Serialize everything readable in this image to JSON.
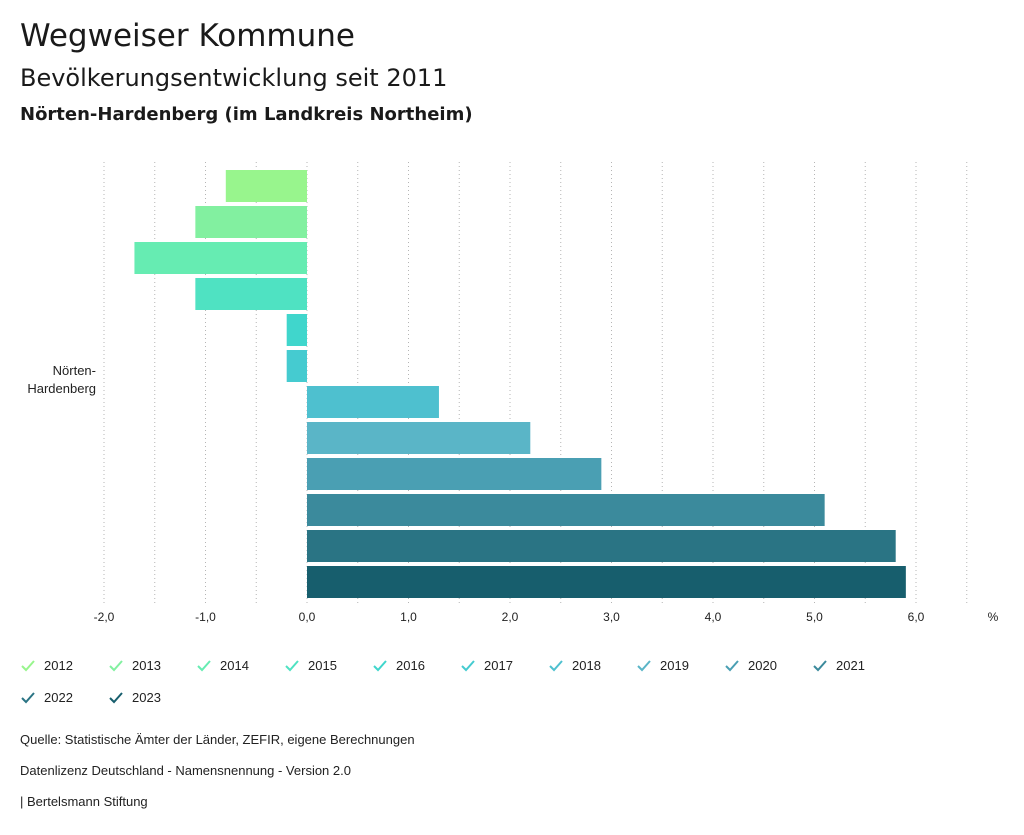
{
  "header": {
    "title": "Wegweiser Kommune",
    "subtitle": "Bevölkerungsentwicklung seit 2011",
    "region": "Nörten-Hardenberg (im Landkreis Northeim)"
  },
  "chart_data": {
    "type": "bar",
    "orientation": "horizontal",
    "categories": [
      "Nörten-\nHardenberg"
    ],
    "xlim": [
      -2.0,
      6.5
    ],
    "xticks": [
      "-2,0",
      "-1,0",
      "0,0",
      "1,0",
      "2,0",
      "3,0",
      "4,0",
      "5,0",
      "6,0"
    ],
    "xtick_values": [
      -2,
      -1,
      0,
      1,
      2,
      3,
      4,
      5,
      6
    ],
    "unit_label": "%",
    "grid": true,
    "series": [
      {
        "name": "2012",
        "values": [
          -0.8
        ],
        "color": "#98f58d"
      },
      {
        "name": "2013",
        "values": [
          -1.1
        ],
        "color": "#82f0a0"
      },
      {
        "name": "2014",
        "values": [
          -1.7
        ],
        "color": "#66ecb2"
      },
      {
        "name": "2015",
        "values": [
          -1.1
        ],
        "color": "#4fe2c2"
      },
      {
        "name": "2016",
        "values": [
          -0.2
        ],
        "color": "#40d6cc"
      },
      {
        "name": "2017",
        "values": [
          -0.2
        ],
        "color": "#45cbd0"
      },
      {
        "name": "2018",
        "values": [
          1.3
        ],
        "color": "#4ec0cf"
      },
      {
        "name": "2019",
        "values": [
          2.2
        ],
        "color": "#5ab5c7"
      },
      {
        "name": "2020",
        "values": [
          2.9
        ],
        "color": "#4a9fb3"
      },
      {
        "name": "2021",
        "values": [
          5.1
        ],
        "color": "#3b8a9c"
      },
      {
        "name": "2022",
        "values": [
          5.8
        ],
        "color": "#2a7484"
      },
      {
        "name": "2023",
        "values": [
          5.9
        ],
        "color": "#175e6d"
      }
    ]
  },
  "footer": {
    "source": "Quelle: Statistische Ämter der Länder, ZEFIR, eigene Berechnungen",
    "license": "Datenlizenz Deutschland - Namensnennung - Version 2.0",
    "publisher": "| Bertelsmann Stiftung"
  }
}
